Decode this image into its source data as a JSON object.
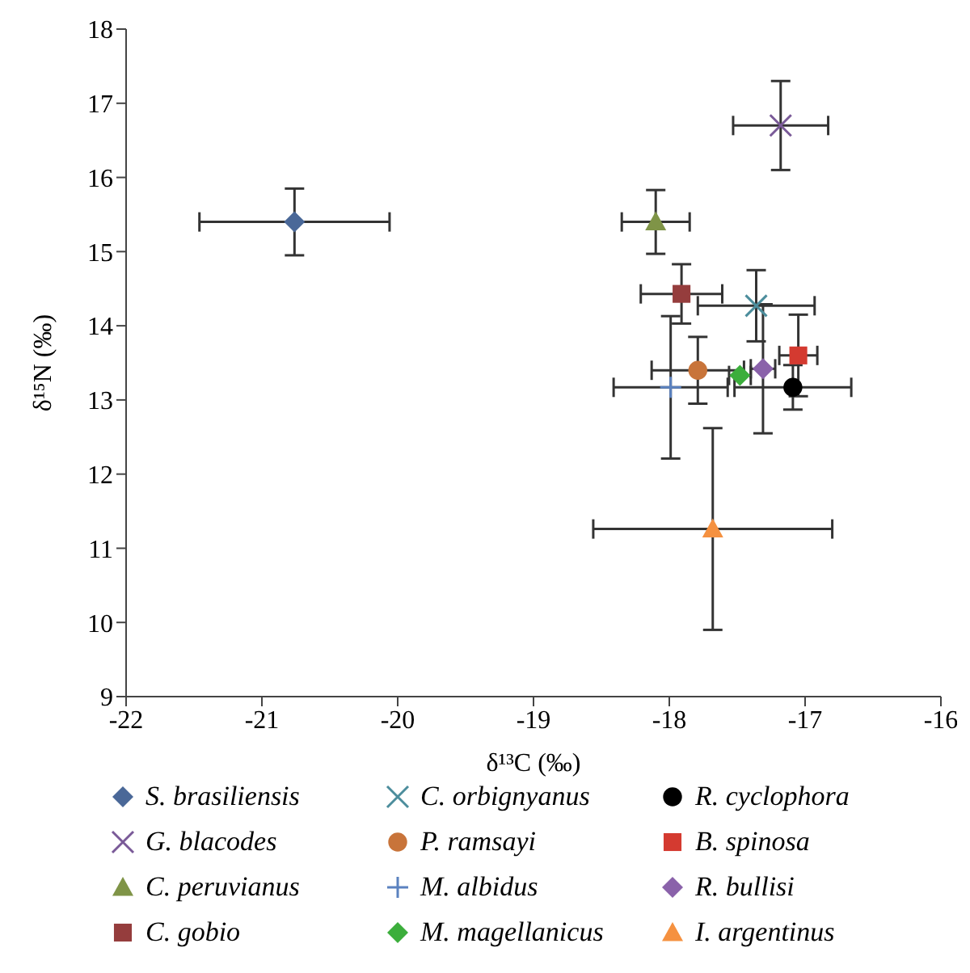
{
  "chart_data": {
    "type": "scatter",
    "xlabel": "δ¹³C (‰)",
    "ylabel": "δ¹⁵N (‰)",
    "xlim": [
      -22,
      -16
    ],
    "xticks": [
      -22,
      -21,
      -20,
      -19,
      -18,
      -17,
      -16
    ],
    "ylim": [
      9,
      18
    ],
    "yticks": [
      9,
      10,
      11,
      12,
      13,
      14,
      15,
      16,
      17,
      18
    ],
    "grid": false,
    "legend": "bottom",
    "series": [
      {
        "name": "S. brasiliensis",
        "color": "#4a6898",
        "marker": "diamond",
        "x": [
          -20.76
        ],
        "values": [
          15.4
        ],
        "xerrors": [
          0.7
        ],
        "errors": [
          0.45
        ]
      },
      {
        "name": "G. blacodes",
        "color": "#7a5a98",
        "marker": "cross",
        "x": [
          -17.18
        ],
        "values": [
          16.7
        ],
        "xerrors": [
          0.35
        ],
        "errors": [
          0.6
        ]
      },
      {
        "name": "C. peruvianus",
        "color": "#7f9447",
        "marker": "triangle",
        "x": [
          -18.1
        ],
        "values": [
          15.4
        ],
        "xerrors": [
          0.25
        ],
        "errors": [
          0.43
        ]
      },
      {
        "name": "C. gobio",
        "color": "#953d3d",
        "marker": "square",
        "x": [
          -17.91
        ],
        "values": [
          14.43
        ],
        "xerrors": [
          0.3
        ],
        "errors": [
          0.4
        ]
      },
      {
        "name": "C. orbignyanus",
        "color": "#4c8d9c",
        "marker": "cross",
        "x": [
          -17.36
        ],
        "values": [
          14.27
        ],
        "xerrors": [
          0.43
        ],
        "errors": [
          0.48
        ]
      },
      {
        "name": "P. ramsayi",
        "color": "#c8743a",
        "marker": "circle",
        "x": [
          -17.79
        ],
        "values": [
          13.4
        ],
        "xerrors": [
          0.34
        ],
        "errors": [
          0.45
        ]
      },
      {
        "name": "M. albidus",
        "color": "#5b82c0",
        "marker": "plus",
        "x": [
          -17.99
        ],
        "values": [
          13.17
        ],
        "xerrors": [
          0.42
        ],
        "errors": [
          0.96
        ]
      },
      {
        "name": "M. magellanicus",
        "color": "#3cae3c",
        "marker": "diamond",
        "x": [
          -17.48
        ],
        "values": [
          13.33
        ],
        "xerrors": [
          0.08
        ],
        "errors": [
          null
        ]
      },
      {
        "name": "R. cyclophora",
        "color": "#000000",
        "marker": "circle",
        "x": [
          -17.09
        ],
        "values": [
          13.17
        ],
        "xerrors": [
          0.43
        ],
        "errors": [
          0.3
        ]
      },
      {
        "name": "B. spinosa",
        "color": "#d43a30",
        "marker": "square",
        "x": [
          -17.05
        ],
        "values": [
          13.6
        ],
        "xerrors": [
          0.14
        ],
        "errors": [
          0.55
        ]
      },
      {
        "name": "R. bullisi",
        "color": "#8a62aa",
        "marker": "diamond",
        "x": [
          -17.31
        ],
        "values": [
          13.42
        ],
        "xerrors": [
          0.09
        ],
        "errors": [
          0.87
        ]
      },
      {
        "name": "I. argentinus",
        "color": "#f59140",
        "marker": "triangle",
        "x": [
          -17.68
        ],
        "values": [
          11.26
        ],
        "xerrors": [
          0.88
        ],
        "errors": [
          1.36
        ]
      }
    ]
  }
}
